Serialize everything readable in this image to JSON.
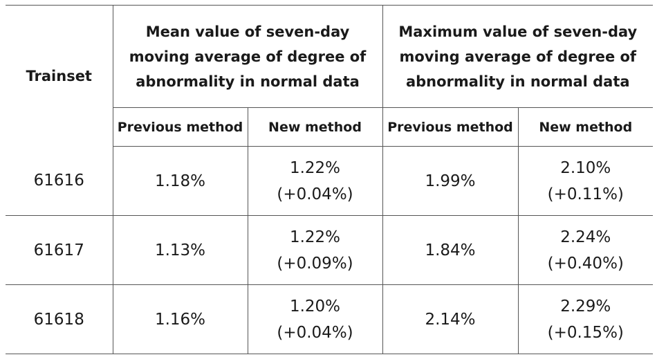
{
  "table": {
    "header": {
      "trainset": "Trainset",
      "groups": [
        "Mean value of seven-day moving average of degree of abnormality in normal data",
        "Maximum value of seven-day moving average of degree of abnormality in normal data"
      ],
      "subheaders": [
        "Previous method",
        "New method",
        "Previous method",
        "New method"
      ]
    },
    "rows": [
      {
        "trainset": "61616",
        "mean_previous": "1.18%",
        "mean_new": "1.22%",
        "mean_new_diff": "(+0.04%)",
        "max_previous": "1.99%",
        "max_new": "2.10%",
        "max_new_diff": "(+0.11%)"
      },
      {
        "trainset": "61617",
        "mean_previous": "1.13%",
        "mean_new": "1.22%",
        "mean_new_diff": "(+0.09%)",
        "max_previous": "1.84%",
        "max_new": "2.24%",
        "max_new_diff": "(+0.40%)"
      },
      {
        "trainset": "61618",
        "mean_previous": "1.16%",
        "mean_new": "1.20%",
        "mean_new_diff": "(+0.04%)",
        "max_previous": "2.14%",
        "max_new": "2.29%",
        "max_new_diff": "(+0.15%)"
      }
    ]
  }
}
